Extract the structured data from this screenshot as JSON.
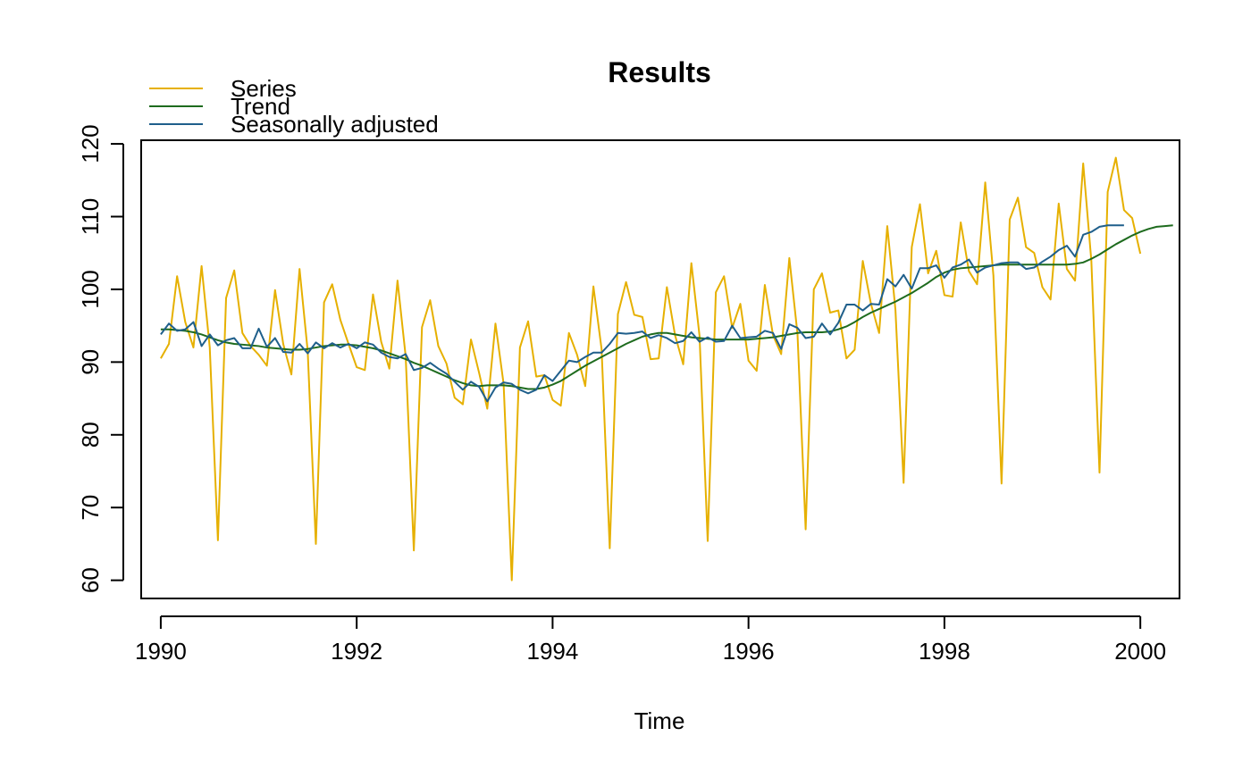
{
  "chart_data": {
    "type": "line",
    "title": "Results",
    "xlabel": "Time",
    "ylabel": "",
    "xlim": [
      1989.8,
      2000.4
    ],
    "ylim": [
      57.5,
      120.5
    ],
    "x_ticks": [
      1990,
      1992,
      1994,
      1996,
      1998,
      2000
    ],
    "x_tick_labels": [
      "1990",
      "1992",
      "1994",
      "1996",
      "1998",
      "2000"
    ],
    "y_ticks": [
      60,
      70,
      80,
      90,
      100,
      110,
      120
    ],
    "y_tick_labels": [
      "60",
      "70",
      "80",
      "90",
      "100",
      "110",
      "120"
    ],
    "grid": false,
    "legend_position": "top-left, above plot",
    "x_start": 1990,
    "x_step": 0.08333333,
    "series": [
      {
        "name": "Series",
        "color": "#E6B000",
        "values": [
          90.5,
          92.5,
          101.8,
          95.5,
          92.0,
          103.2,
          92.0,
          65.5,
          98.8,
          102.6,
          94.0,
          92.2,
          91.0,
          89.5,
          99.9,
          92.5,
          88.3,
          102.8,
          91.5,
          65.0,
          98.2,
          100.7,
          95.8,
          92.5,
          89.3,
          88.9,
          99.3,
          92.8,
          89.1,
          101.2,
          90.8,
          64.1,
          94.8,
          98.5,
          92.2,
          89.8,
          85.1,
          84.2,
          93.1,
          88.5,
          83.6,
          95.3,
          87.0,
          60.0,
          92.0,
          95.6,
          88.0,
          88.2,
          84.8,
          84.0,
          94.0,
          91.0,
          86.7,
          100.4,
          91.8,
          64.4,
          96.6,
          101.0,
          96.5,
          96.2,
          90.4,
          90.5,
          100.3,
          93.7,
          89.7,
          103.6,
          93.6,
          65.4,
          99.6,
          101.8,
          94.7,
          98.0,
          90.2,
          88.8,
          100.6,
          93.7,
          91.1,
          104.3,
          93.9,
          67.0,
          100.0,
          102.2,
          96.8,
          97.1,
          90.5,
          91.7,
          103.9,
          98.0,
          94.0,
          108.7,
          97.2,
          73.4,
          105.8,
          111.7,
          102.2,
          105.3,
          99.2,
          99.0,
          109.2,
          102.5,
          100.7,
          114.7,
          101.9,
          73.3,
          109.6,
          112.6,
          105.8,
          105.0,
          100.3,
          98.6,
          111.8,
          102.8,
          101.2,
          117.3,
          103.9,
          74.8,
          113.4,
          118.1,
          110.9,
          109.8,
          104.9
        ]
      },
      {
        "name": "Trend",
        "color": "#1E6B1E",
        "values": [
          94.5,
          94.5,
          94.4,
          94.3,
          94.1,
          93.8,
          93.4,
          93.0,
          92.7,
          92.5,
          92.4,
          92.3,
          92.2,
          92.0,
          91.9,
          91.8,
          91.7,
          91.7,
          91.8,
          92.0,
          92.2,
          92.3,
          92.4,
          92.4,
          92.3,
          92.1,
          91.9,
          91.6,
          91.2,
          90.8,
          90.4,
          89.9,
          89.5,
          89.0,
          88.5,
          88.0,
          87.5,
          87.1,
          86.8,
          86.7,
          86.8,
          86.8,
          86.8,
          86.7,
          86.5,
          86.3,
          86.3,
          86.5,
          86.9,
          87.4,
          88.1,
          88.8,
          89.5,
          90.1,
          90.7,
          91.3,
          91.9,
          92.5,
          93.0,
          93.5,
          93.8,
          94.0,
          94.0,
          93.8,
          93.6,
          93.4,
          93.3,
          93.2,
          93.1,
          93.1,
          93.1,
          93.1,
          93.1,
          93.2,
          93.3,
          93.4,
          93.6,
          93.8,
          94.0,
          94.1,
          94.1,
          94.1,
          94.2,
          94.5,
          94.9,
          95.5,
          96.2,
          96.8,
          97.3,
          97.8,
          98.3,
          98.9,
          99.5,
          100.2,
          100.9,
          101.7,
          102.3,
          102.7,
          102.9,
          103.0,
          103.1,
          103.2,
          103.3,
          103.4,
          103.4,
          103.4,
          103.4,
          103.4,
          103.4,
          103.4,
          103.4,
          103.4,
          103.5,
          103.7,
          104.2,
          104.8,
          105.5,
          106.2,
          106.8,
          107.4,
          107.9,
          108.3,
          108.6,
          108.7,
          108.8
        ]
      },
      {
        "name": "Seasonally adjusted",
        "color": "#1F5F8B",
        "values": [
          93.8,
          95.3,
          94.3,
          94.5,
          95.5,
          92.2,
          93.8,
          92.3,
          93.0,
          93.3,
          91.9,
          91.9,
          94.6,
          92.1,
          93.3,
          91.4,
          91.3,
          92.5,
          91.2,
          92.7,
          91.9,
          92.6,
          92.0,
          92.5,
          91.9,
          92.7,
          92.4,
          91.3,
          90.7,
          90.5,
          91.1,
          88.9,
          89.2,
          89.9,
          89.1,
          88.4,
          87.3,
          86.2,
          87.3,
          86.6,
          84.6,
          86.5,
          87.2,
          87.0,
          86.2,
          85.7,
          86.2,
          88.2,
          87.4,
          88.8,
          90.2,
          90.0,
          90.7,
          91.3,
          91.3,
          92.5,
          94.0,
          93.9,
          94.0,
          94.2,
          93.3,
          93.7,
          93.3,
          92.6,
          92.9,
          94.1,
          92.8,
          93.4,
          92.8,
          92.9,
          95.0,
          93.3,
          93.4,
          93.5,
          94.3,
          94.0,
          91.8,
          95.2,
          94.7,
          93.3,
          93.5,
          95.3,
          93.8,
          95.4,
          97.9,
          97.9,
          97.1,
          98.0,
          97.9,
          101.4,
          100.4,
          102.0,
          100.1,
          102.9,
          102.9,
          103.3,
          101.6,
          103.0,
          103.4,
          104.1,
          102.3,
          103.0,
          103.3,
          103.6,
          103.7,
          103.7,
          102.8,
          103.0,
          103.8,
          104.5,
          105.4,
          106.0,
          104.5,
          107.5,
          107.9,
          108.6,
          108.8,
          108.8,
          108.8
        ]
      }
    ]
  }
}
